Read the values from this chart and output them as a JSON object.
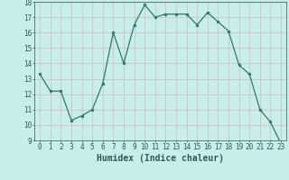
{
  "x": [
    0,
    1,
    2,
    3,
    4,
    5,
    6,
    7,
    8,
    9,
    10,
    11,
    12,
    13,
    14,
    15,
    16,
    17,
    18,
    19,
    20,
    21,
    22,
    23
  ],
  "y": [
    13.3,
    12.2,
    12.2,
    10.3,
    10.6,
    11.0,
    12.7,
    16.0,
    14.0,
    16.5,
    17.8,
    17.0,
    17.2,
    17.2,
    17.2,
    16.5,
    17.3,
    16.7,
    16.1,
    13.9,
    13.3,
    11.0,
    10.2,
    8.8
  ],
  "xlabel": "Humidex (Indice chaleur)",
  "ylim": [
    9,
    18
  ],
  "xlim": [
    -0.5,
    23.5
  ],
  "yticks": [
    9,
    10,
    11,
    12,
    13,
    14,
    15,
    16,
    17,
    18
  ],
  "xticks": [
    0,
    1,
    2,
    3,
    4,
    5,
    6,
    7,
    8,
    9,
    10,
    11,
    12,
    13,
    14,
    15,
    16,
    17,
    18,
    19,
    20,
    21,
    22,
    23
  ],
  "xtick_labels": [
    "0",
    "1",
    "2",
    "3",
    "4",
    "5",
    "6",
    "7",
    "8",
    "9",
    "10",
    "11",
    "12",
    "13",
    "14",
    "15",
    "16",
    "17",
    "18",
    "19",
    "20",
    "21",
    "22",
    "23"
  ],
  "line_color": "#2d7a6e",
  "marker_color": "#2d7a6e",
  "bg_color": "#c8eeea",
  "grid_color": "#d4b8b8",
  "font_color": "#2d5a5a",
  "tick_fontsize": 5.5,
  "xlabel_fontsize": 7
}
